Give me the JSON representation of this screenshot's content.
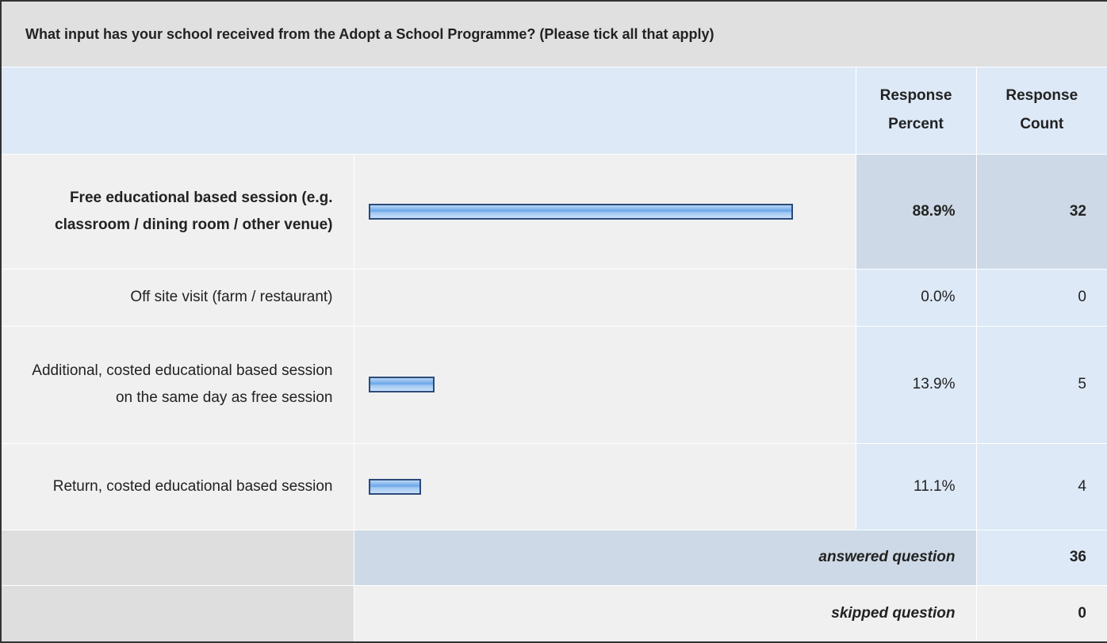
{
  "title": "What input has your school received from the Adopt a School Programme? (Please tick all that apply)",
  "header": {
    "percent": "Response Percent",
    "count": "Response Count"
  },
  "rows": [
    {
      "label": "Free educational based session (e.g. classroom / dining room / other venue)",
      "percent": 88.9,
      "percent_label": "88.9%",
      "count": 32
    },
    {
      "label": "Off site visit (farm / restaurant)",
      "percent": 0.0,
      "percent_label": "0.0%",
      "count": 0
    },
    {
      "label": "Additional, costed educational based session on the same day as free session",
      "percent": 13.9,
      "percent_label": "13.9%",
      "count": 5
    },
    {
      "label": "Return, costed educational based session",
      "percent": 11.1,
      "percent_label": "11.1%",
      "count": 4
    }
  ],
  "answered": {
    "label": "answered question",
    "count": 36
  },
  "skipped": {
    "label": "skipped question",
    "count": 0
  }
}
